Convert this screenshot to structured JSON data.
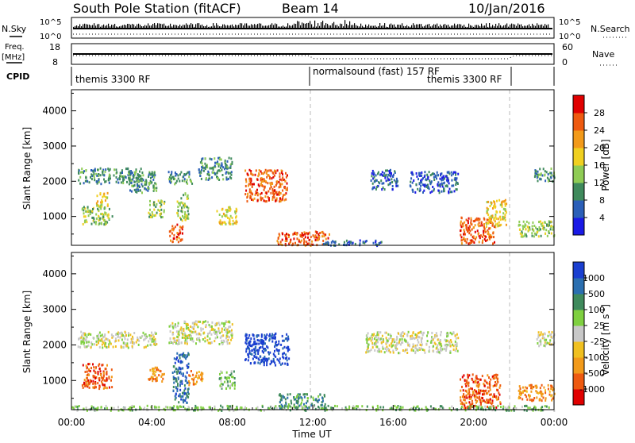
{
  "header": {
    "station": "South Pole Station (fitACF)",
    "beam": "Beam 14",
    "date": "10/Jan/2016"
  },
  "top_panels": {
    "nsky_label": "N.Sky",
    "nsearch_label": "N.Search",
    "nsky_ticks": [
      "10^5",
      "10^0"
    ],
    "nsearch_ticks": [
      "10^5",
      "10^0"
    ],
    "freq_label": "Freq.",
    "freq_unit": "[MHz]",
    "freq_ticks": [
      "18",
      "8"
    ],
    "nave_label": "Nave",
    "nave_ticks": [
      "60",
      "0"
    ],
    "cpid_label": "CPID",
    "cpid_segments": [
      {
        "name": "themis 3300 RF",
        "start_hour": 0,
        "end_hour": 12
      },
      {
        "name": "normalsound (fast) 157 RF",
        "start_hour": 12,
        "end_hour": 22
      },
      {
        "name": "themis 3300 RF",
        "start_hour": 18.5,
        "end_hour": 22
      }
    ]
  },
  "chart_data": [
    {
      "type": "heatmap",
      "name": "power",
      "ylabel": "Slant Range [km]",
      "yticks": [
        1000,
        2000,
        3000,
        4000
      ],
      "ylim": [
        180,
        4600
      ],
      "xlim": [
        0,
        24
      ],
      "colorbar": {
        "label": "Power [dB]",
        "ticks": [
          "4",
          "8",
          "12",
          "16",
          "20",
          "24",
          "28"
        ],
        "colors": [
          "#1a1ae6",
          "#2b5fb8",
          "#3f8a5c",
          "#8fcc55",
          "#f0d020",
          "#f29a1a",
          "#ee5a10",
          "#e00000"
        ]
      },
      "features": [
        {
          "x": [
            0.3,
            3.5
          ],
          "y": [
            1950,
            2400
          ],
          "level": 2
        },
        {
          "x": [
            2.8,
            4.2
          ],
          "y": [
            1700,
            2300
          ],
          "level": 2
        },
        {
          "x": [
            4.8,
            6.0
          ],
          "y": [
            1950,
            2300
          ],
          "level": 2
        },
        {
          "x": [
            6.3,
            8.0
          ],
          "y": [
            2050,
            2700
          ],
          "level": 2
        },
        {
          "x": [
            8.6,
            10.7
          ],
          "y": [
            1450,
            2350
          ],
          "level": 6
        },
        {
          "x": [
            0.5,
            2.0
          ],
          "y": [
            800,
            1300
          ],
          "level": 3
        },
        {
          "x": [
            1.2,
            1.8
          ],
          "y": [
            1300,
            1700
          ],
          "level": 4
        },
        {
          "x": [
            3.8,
            4.6
          ],
          "y": [
            1000,
            1500
          ],
          "level": 3
        },
        {
          "x": [
            4.8,
            5.5
          ],
          "y": [
            300,
            800
          ],
          "level": 6
        },
        {
          "x": [
            5.2,
            5.8
          ],
          "y": [
            900,
            1700
          ],
          "level": 3
        },
        {
          "x": [
            7.2,
            8.2
          ],
          "y": [
            800,
            1300
          ],
          "level": 4
        },
        {
          "x": [
            10.2,
            12.8
          ],
          "y": [
            200,
            600
          ],
          "level": 6
        },
        {
          "x": [
            12.5,
            15.5
          ],
          "y": [
            200,
            350
          ],
          "level": 1
        },
        {
          "x": [
            14.8,
            16.2
          ],
          "y": [
            1800,
            2350
          ],
          "level": 1
        },
        {
          "x": [
            16.8,
            19.2
          ],
          "y": [
            1700,
            2300
          ],
          "level": 1
        },
        {
          "x": [
            19.3,
            21.0
          ],
          "y": [
            250,
            1000
          ],
          "level": 6
        },
        {
          "x": [
            20.6,
            21.6
          ],
          "y": [
            700,
            1500
          ],
          "level": 4
        },
        {
          "x": [
            22.2,
            24.0
          ],
          "y": [
            450,
            900
          ],
          "level": 3
        },
        {
          "x": [
            23.0,
            24.0
          ],
          "y": [
            2000,
            2400
          ],
          "level": 2
        }
      ]
    },
    {
      "type": "heatmap",
      "name": "velocity",
      "ylabel": "Slant Range [km]",
      "yticks": [
        1000,
        2000,
        3000,
        4000
      ],
      "ylim": [
        180,
        4600
      ],
      "xlim": [
        0,
        24
      ],
      "xlabel": "Time UT",
      "xticks": [
        "00:00",
        "04:00",
        "08:00",
        "12:00",
        "16:00",
        "20:00",
        "00:00"
      ],
      "colorbar": {
        "label": "Velocity [m s",
        "label_sup": "-1",
        "label_close": "]",
        "ticks": [
          "1000",
          "500",
          "100",
          "25",
          "-25",
          "-100",
          "-500",
          "-1000"
        ],
        "colors": [
          "#1a3fd0",
          "#2b6fb0",
          "#3f8a5c",
          "#7fd040",
          "#c8c8c8",
          "#f0c020",
          "#f29a1a",
          "#ee5a10",
          "#e00000"
        ]
      },
      "features": [
        {
          "x": [
            0.3,
            4.2
          ],
          "y": [
            1950,
            2400
          ],
          "level": 4
        },
        {
          "x": [
            4.8,
            8.0
          ],
          "y": [
            2050,
            2700
          ],
          "level": 4
        },
        {
          "x": [
            8.6,
            10.8
          ],
          "y": [
            1450,
            2350
          ],
          "level": 0
        },
        {
          "x": [
            0.5,
            2.0
          ],
          "y": [
            800,
            1500
          ],
          "level": 7
        },
        {
          "x": [
            3.8,
            4.6
          ],
          "y": [
            1000,
            1400
          ],
          "level": 6
        },
        {
          "x": [
            5.0,
            5.8
          ],
          "y": [
            400,
            1800
          ],
          "level": 1
        },
        {
          "x": [
            5.8,
            6.5
          ],
          "y": [
            900,
            1300
          ],
          "level": 6
        },
        {
          "x": [
            7.3,
            8.1
          ],
          "y": [
            800,
            1300
          ],
          "level": 3
        },
        {
          "x": [
            10.3,
            12.6
          ],
          "y": [
            250,
            650
          ],
          "level": 2
        },
        {
          "x": [
            14.6,
            19.2
          ],
          "y": [
            1800,
            2400
          ],
          "level": 4
        },
        {
          "x": [
            19.3,
            21.3
          ],
          "y": [
            250,
            1200
          ],
          "level": 7
        },
        {
          "x": [
            22.2,
            24.0
          ],
          "y": [
            450,
            900
          ],
          "level": 6
        },
        {
          "x": [
            23.0,
            24.0
          ],
          "y": [
            2000,
            2400
          ],
          "level": 4
        },
        {
          "x": [
            0.0,
            24.0
          ],
          "y": [
            180,
            320
          ],
          "level": 3
        }
      ]
    }
  ]
}
